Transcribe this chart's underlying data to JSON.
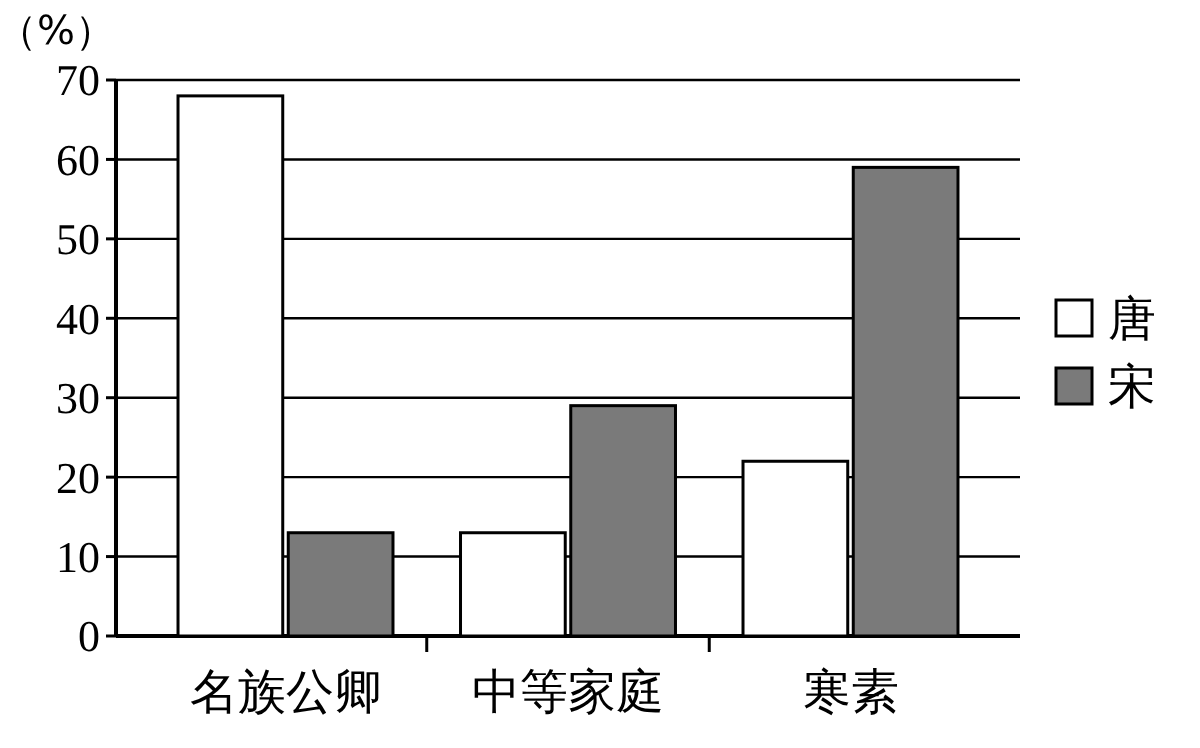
{
  "chart_data": {
    "type": "bar",
    "ylabel": "（%）",
    "categories": [
      "名族公卿",
      "中等家庭",
      "寒素"
    ],
    "series": [
      {
        "name": "唐",
        "color": "#ffffff",
        "values": [
          68,
          13,
          22
        ]
      },
      {
        "name": "宋",
        "color": "#7a7a7a",
        "values": [
          13,
          29,
          59
        ]
      }
    ],
    "ylim": [
      0,
      70
    ],
    "yticks": [
      0,
      10,
      20,
      30,
      40,
      50,
      60,
      70
    ],
    "grid": "y",
    "legend": "right"
  }
}
